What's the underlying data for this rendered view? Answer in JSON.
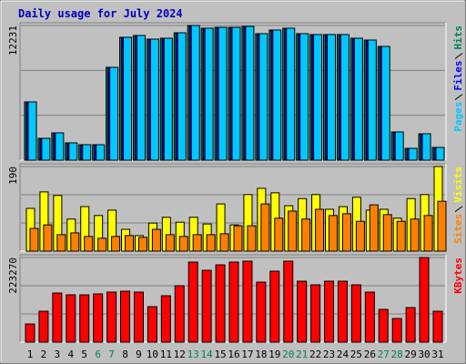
{
  "chart_data": [
    {
      "type": "bar",
      "title": "Daily usage for July 2024",
      "ylim": [
        0,
        12231
      ],
      "yticks": [
        12231
      ],
      "series": [
        {
          "name": "Hits",
          "color": "#00805c",
          "values": [
            5289,
            1983,
            2479,
            1570,
            1405,
            1405,
            8429,
            11157,
            11322,
            10991,
            11074,
            11570,
            12231,
            11983,
            12066,
            12066,
            12148,
            11487,
            11818,
            11983,
            11487,
            11405,
            11405,
            11405,
            11074,
            10909,
            10330,
            2562,
            1074,
            2397,
            1157
          ]
        },
        {
          "name": "Files",
          "color": "#0000ff",
          "values": [
            5289,
            1983,
            2479,
            1570,
            1405,
            1405,
            8429,
            11157,
            11322,
            10991,
            11074,
            11570,
            12231,
            11983,
            12066,
            12066,
            12148,
            11487,
            11818,
            11983,
            11487,
            11405,
            11405,
            11405,
            11074,
            10909,
            10330,
            2562,
            1074,
            2397,
            1157
          ]
        },
        {
          "name": "Pages",
          "color": "#00c8ff",
          "values": [
            5289,
            1983,
            2479,
            1570,
            1405,
            1405,
            8429,
            11157,
            11322,
            10991,
            11074,
            11570,
            12231,
            11983,
            12066,
            12066,
            12148,
            11487,
            11818,
            11983,
            11487,
            11405,
            11405,
            11405,
            11074,
            10909,
            10330,
            2562,
            1074,
            2397,
            1157
          ]
        }
      ]
    },
    {
      "type": "bar",
      "ylim": [
        0,
        190
      ],
      "yticks": [
        190
      ],
      "series": [
        {
          "name": "Visits",
          "color": "#ffff00",
          "values": [
            96,
            133,
            125,
            72,
            100,
            80,
            92,
            49,
            35,
            63,
            76,
            65,
            76,
            61,
            106,
            59,
            127,
            141,
            131,
            102,
            118,
            127,
            94,
            100,
            121,
            92,
            94,
            74,
            118,
            127,
            190
          ]
        },
        {
          "name": "Sites",
          "color": "#ff8000",
          "values": [
            51,
            59,
            37,
            41,
            33,
            29,
            33,
            35,
            31,
            49,
            37,
            33,
            37,
            37,
            39,
            57,
            57,
            106,
            74,
            90,
            72,
            94,
            80,
            84,
            67,
            104,
            82,
            67,
            72,
            80,
            112
          ]
        }
      ]
    },
    {
      "type": "bar",
      "ylim": [
        0,
        223270
      ],
      "yticks": [
        223270
      ],
      "categories": [
        "1",
        "2",
        "3",
        "4",
        "5",
        "6",
        "7",
        "8",
        "9",
        "10",
        "11",
        "12",
        "13",
        "14",
        "15",
        "16",
        "17",
        "18",
        "19",
        "20",
        "21",
        "22",
        "23",
        "24",
        "25",
        "26",
        "27",
        "28",
        "29",
        "30",
        "31"
      ],
      "category_colors": [
        "#000000",
        "#000000",
        "#000000",
        "#000000",
        "#000000",
        "#00805c",
        "#00805c",
        "#000000",
        "#000000",
        "#000000",
        "#000000",
        "#000000",
        "#00805c",
        "#00805c",
        "#000000",
        "#000000",
        "#000000",
        "#000000",
        "#000000",
        "#00805c",
        "#00805c",
        "#000000",
        "#000000",
        "#000000",
        "#000000",
        "#000000",
        "#00805c",
        "#00805c",
        "#000000",
        "#000000",
        "#000000"
      ],
      "series": [
        {
          "name": "KBytes",
          "color": "#ff0000",
          "values": [
            48016,
            81627,
            129643,
            124842,
            124842,
            127242,
            132044,
            134445,
            132044,
            93631,
            122441,
            148850,
            211270,
            189663,
            204068,
            211270,
            213671,
            158453,
            187262,
            213671,
            160854,
            151250,
            160854,
            160854,
            151250,
            132044,
            86429,
            62421,
            91230,
            223270,
            81627
          ]
        }
      ]
    }
  ]
}
